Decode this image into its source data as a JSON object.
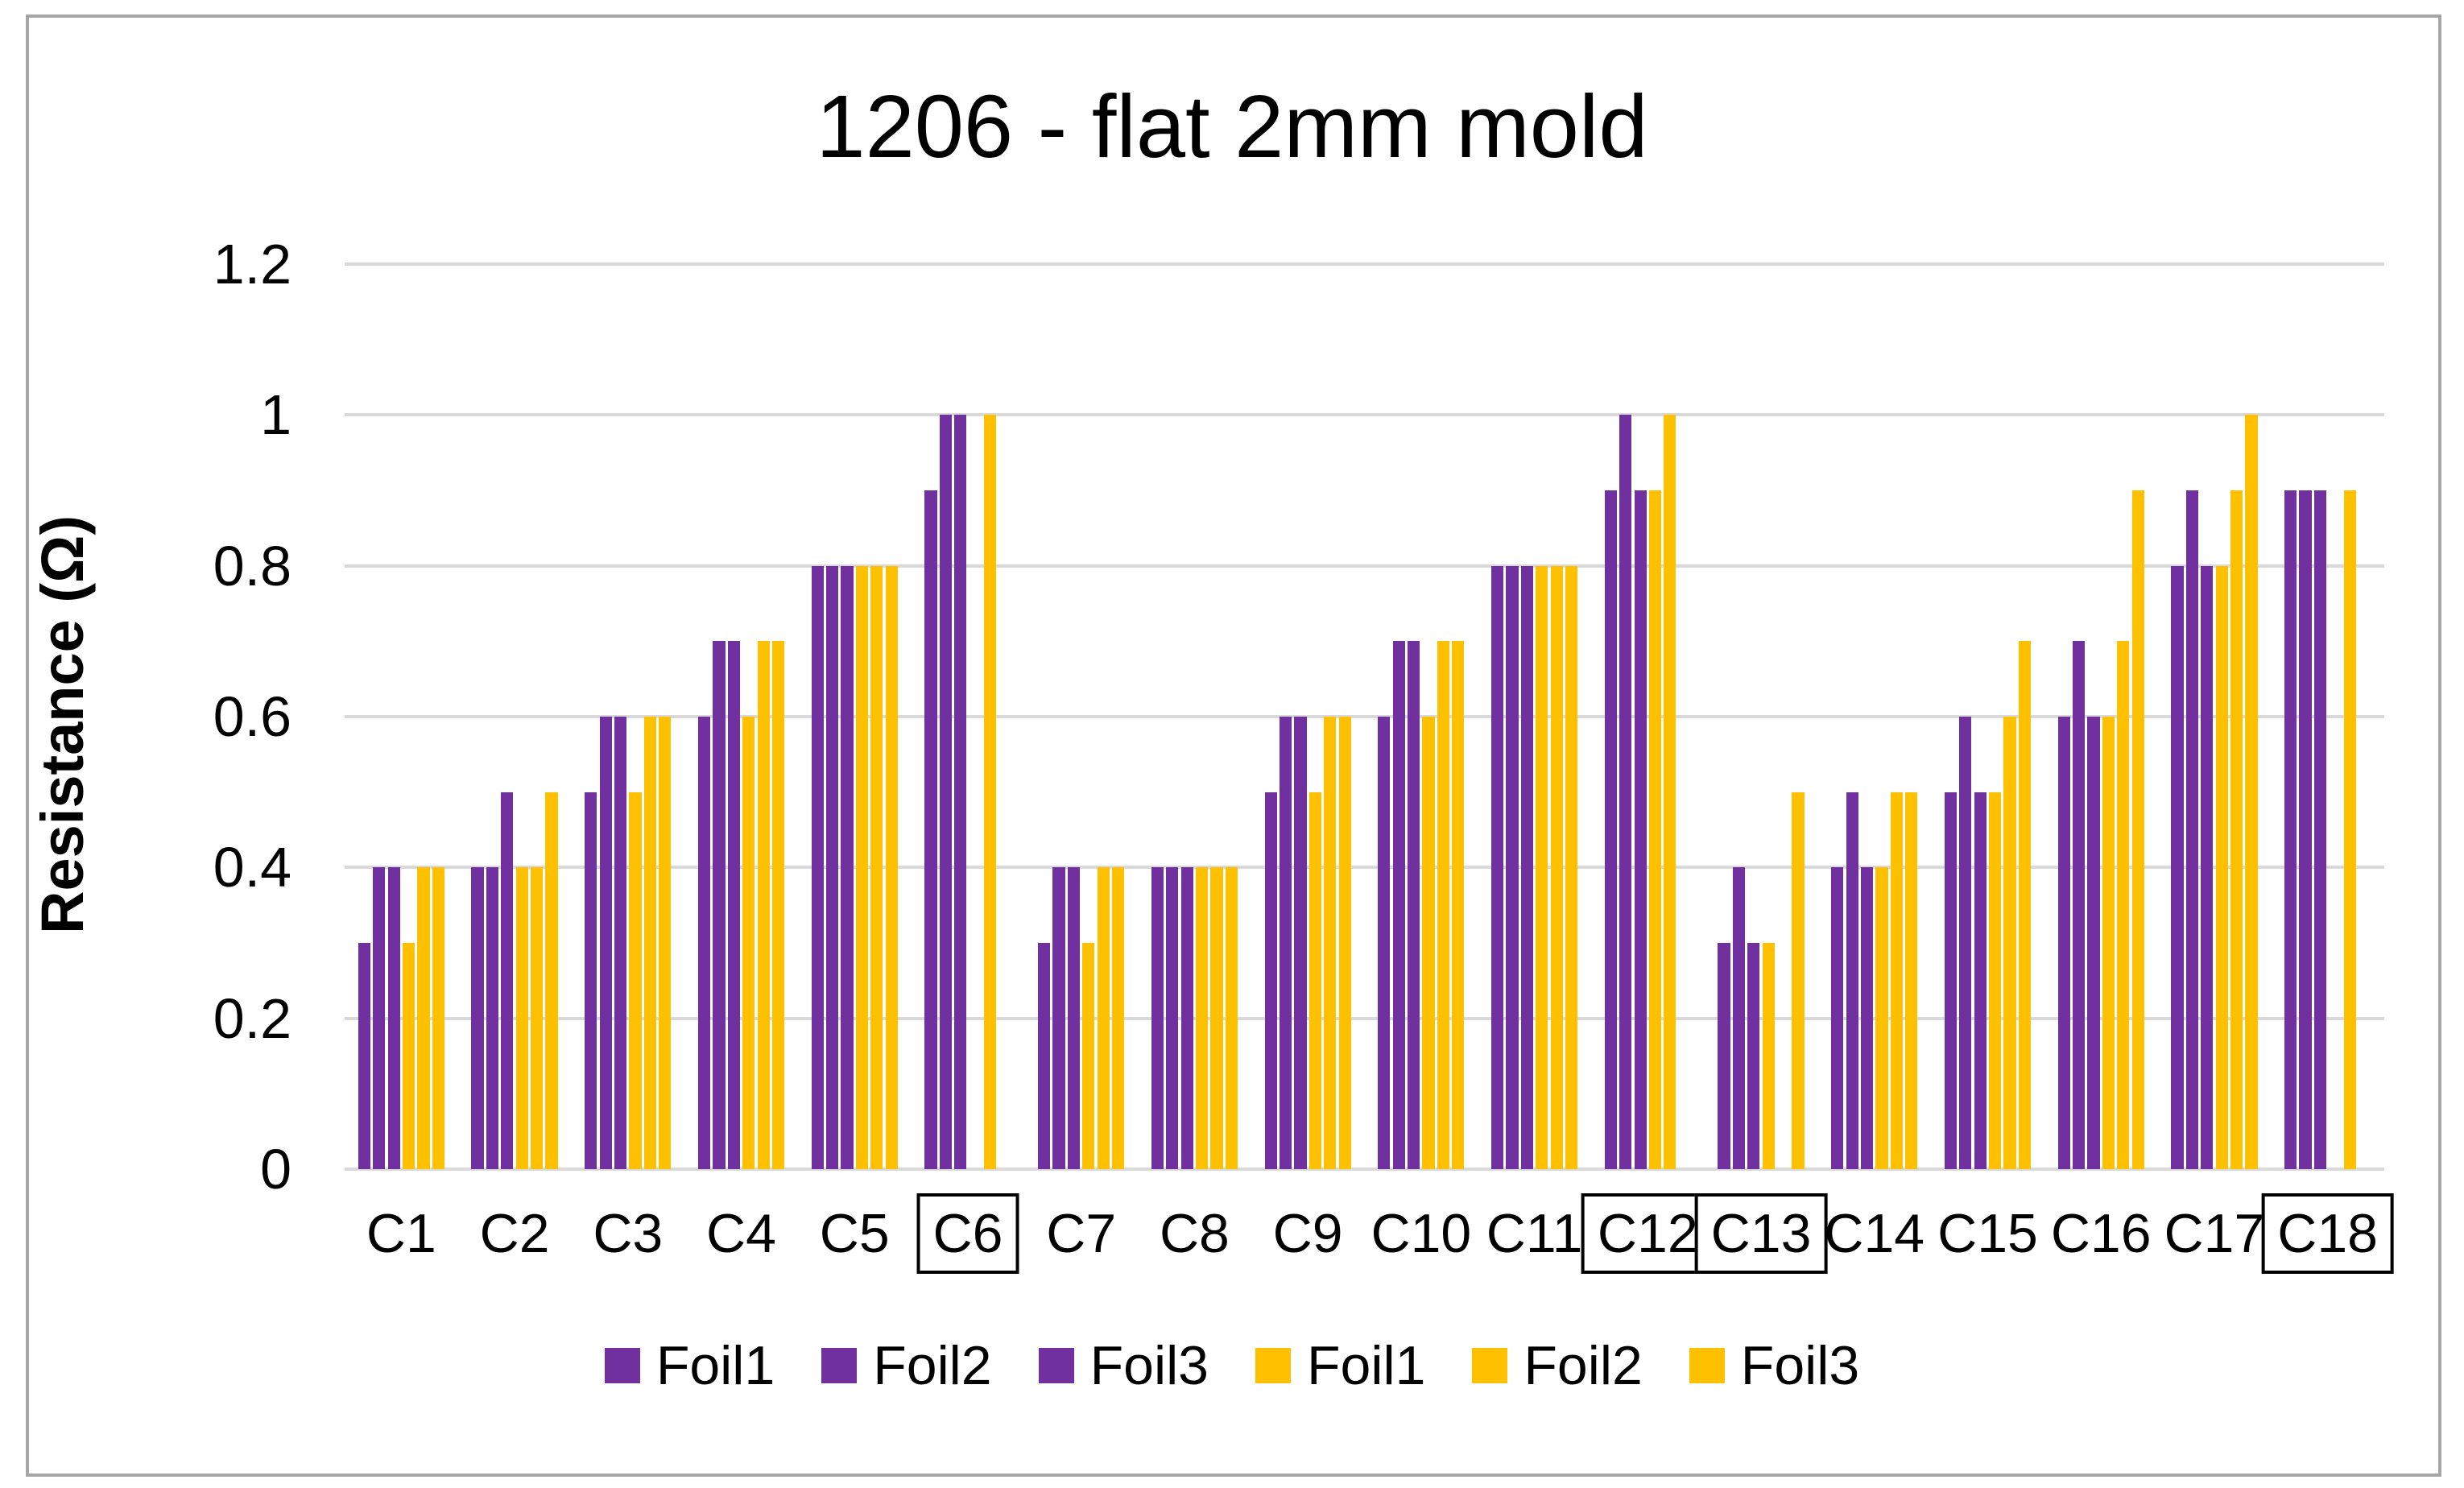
{
  "title": "1206 - flat 2mm mold",
  "colors": {
    "purple": "#7030A0",
    "yellow": "#FFC000",
    "gridline": "#D9D9D9",
    "frame_border": "#A6A6A6",
    "label_box_border": "#000000"
  },
  "chart_data": {
    "type": "bar",
    "title": "1206 - flat 2mm mold",
    "xlabel": "",
    "ylabel": "Resistance (Ω)",
    "ylim": [
      0,
      1.2
    ],
    "ytick_step": 0.2,
    "ytick_labels": [
      "0",
      "0.2",
      "0.4",
      "0.6",
      "0.8",
      "1",
      "1.2"
    ],
    "grid": true,
    "legend_position": "bottom",
    "categories": [
      "C1",
      "C2",
      "C3",
      "C4",
      "C5",
      "C6",
      "C7",
      "C8",
      "C9",
      "C10",
      "C11",
      "C12",
      "C13",
      "C14",
      "C15",
      "C16",
      "C17",
      "C18"
    ],
    "boxed_categories": [
      "C6",
      "C12",
      "C13",
      "C18"
    ],
    "series": [
      {
        "name": "Foil1",
        "color": "#7030A0",
        "values": [
          0.3,
          0.4,
          0.5,
          0.6,
          0.8,
          0.9,
          0.3,
          0.4,
          0.5,
          0.6,
          0.8,
          0.9,
          0.3,
          0.4,
          0.5,
          0.6,
          0.8,
          0.9
        ]
      },
      {
        "name": "Foil2",
        "color": "#7030A0",
        "values": [
          0.4,
          0.4,
          0.6,
          0.7,
          0.8,
          1.0,
          0.4,
          0.4,
          0.6,
          0.7,
          0.8,
          1.0,
          0.4,
          0.5,
          0.6,
          0.7,
          0.9,
          0.9
        ]
      },
      {
        "name": "Foil3",
        "color": "#7030A0",
        "values": [
          0.4,
          0.5,
          0.6,
          0.7,
          0.8,
          1.0,
          0.4,
          0.4,
          0.6,
          0.7,
          0.8,
          0.9,
          0.3,
          0.4,
          0.5,
          0.6,
          0.8,
          0.9
        ]
      },
      {
        "name": "Foil1",
        "color": "#FFC000",
        "values": [
          0.3,
          0.4,
          0.5,
          0.6,
          0.8,
          null,
          0.3,
          0.4,
          0.5,
          0.6,
          0.8,
          0.9,
          0.3,
          0.4,
          0.5,
          0.6,
          0.8,
          null
        ]
      },
      {
        "name": "Foil2",
        "color": "#FFC000",
        "values": [
          0.4,
          0.4,
          0.6,
          0.7,
          0.8,
          1.0,
          0.4,
          0.4,
          0.6,
          0.7,
          0.8,
          1.0,
          null,
          0.5,
          0.6,
          0.7,
          0.9,
          0.9
        ]
      },
      {
        "name": "Foil3",
        "color": "#FFC000",
        "values": [
          0.4,
          0.5,
          0.6,
          0.7,
          0.8,
          null,
          0.4,
          0.4,
          0.6,
          0.7,
          0.8,
          null,
          0.5,
          0.5,
          0.7,
          0.9,
          1.0,
          null
        ]
      }
    ]
  }
}
